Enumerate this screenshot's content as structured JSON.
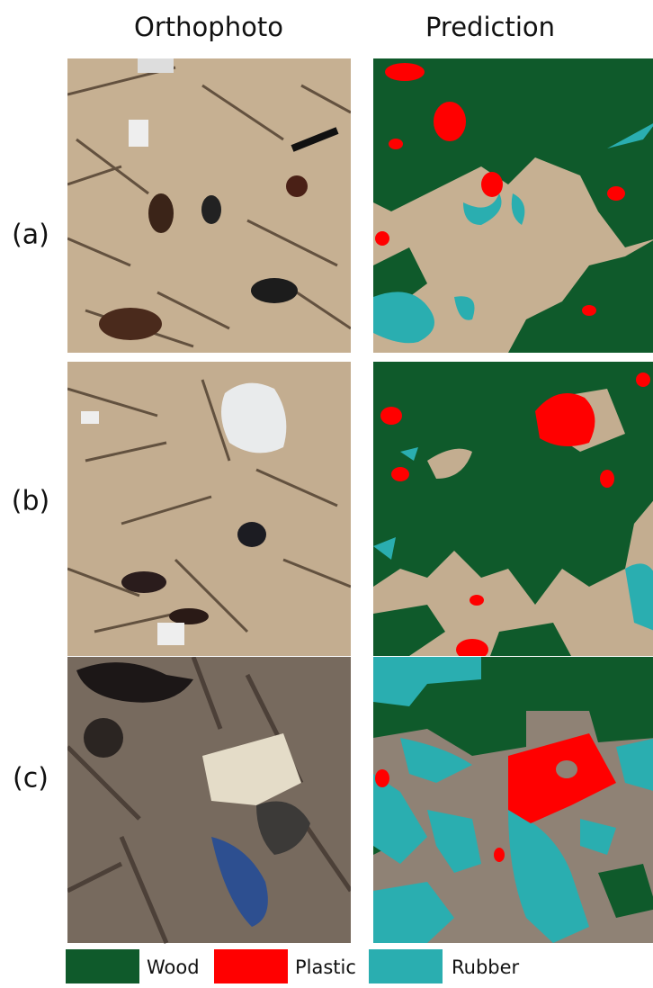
{
  "columns": [
    "Orthophoto",
    "Prediction"
  ],
  "rows": [
    "(a)",
    "(b)",
    "(c)"
  ],
  "legend": [
    {
      "label": "Wood",
      "color": "#0f5a2b"
    },
    {
      "label": "Plastic",
      "color": "#ff0000"
    },
    {
      "label": "Rubber",
      "color": "#2aaeb0"
    }
  ]
}
